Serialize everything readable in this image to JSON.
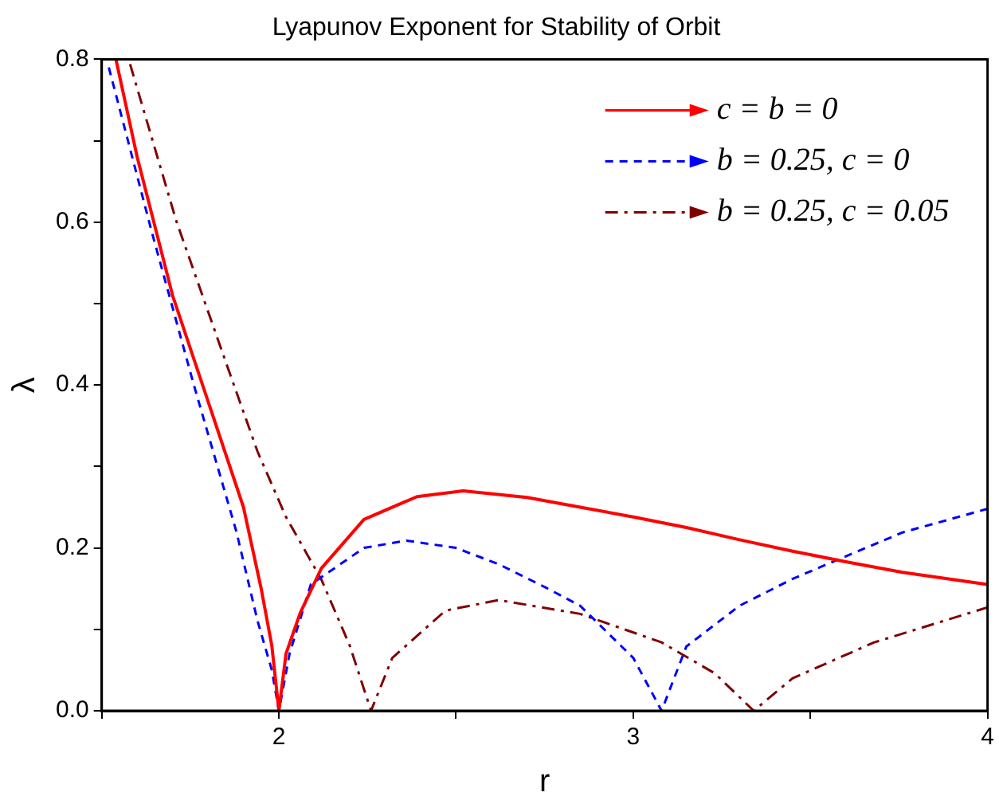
{
  "chart_data": {
    "type": "line",
    "title": "Lyapunov Exponent for Stability of Orbit",
    "xlabel": "r",
    "ylabel": "λ",
    "xlim": [
      1.5,
      4
    ],
    "xticks": [
      {
        "value": 1.5,
        "label": null
      },
      2,
      {
        "value": 2.5,
        "label": null
      },
      3,
      {
        "value": 3.5,
        "label": null
      },
      4
    ],
    "ylim": [
      0,
      0.8
    ],
    "yticks": [
      "0.0",
      {
        "value": 0.1,
        "label": null
      },
      0.2,
      {
        "value": 0.3,
        "label": null
      },
      0.4,
      {
        "value": 0.5,
        "label": null
      },
      0.6,
      {
        "value": 0.7,
        "label": null
      },
      0.8
    ],
    "grid": false,
    "legend": "top right",
    "marker": "none",
    "series": [
      {
        "name": "c = b = 0",
        "color": "#ff0000",
        "line_style": "solid",
        "x": [
          1.54,
          1.6,
          1.7,
          1.8,
          1.9,
          1.95,
          1.98,
          2.0,
          2.02,
          2.06,
          2.12,
          2.24,
          2.39,
          2.52,
          2.7,
          2.85,
          3.0,
          3.15,
          3.3,
          3.45,
          3.6,
          3.76,
          4.0
        ],
        "values": [
          0.8,
          0.68,
          0.51,
          0.38,
          0.25,
          0.15,
          0.08,
          0,
          0.07,
          0.12,
          0.175,
          0.235,
          0.263,
          0.27,
          0.262,
          0.25,
          0.238,
          0.225,
          0.21,
          0.196,
          0.183,
          0.17,
          0.155
        ]
      },
      {
        "name": "b = 0.25, c = 0",
        "color": "#0000ff",
        "line_style": "dashed",
        "x": [
          1.52,
          1.64,
          1.76,
          1.88,
          1.94,
          1.98,
          2.0,
          2.03,
          2.09,
          2.24,
          2.36,
          2.5,
          2.62,
          2.75,
          2.85,
          3.0,
          3.08,
          3.15,
          3.3,
          3.45,
          3.58,
          3.76,
          4.0
        ],
        "values": [
          0.79,
          0.59,
          0.4,
          0.22,
          0.11,
          0.05,
          0,
          0.07,
          0.155,
          0.2,
          0.209,
          0.2,
          0.18,
          0.152,
          0.129,
          0.065,
          0,
          0.079,
          0.129,
          0.162,
          0.186,
          0.219,
          0.248
        ]
      },
      {
        "name": "b = 0.25, c = 0.05",
        "color": "#800000",
        "line_style": "dashdot",
        "x": [
          1.58,
          1.71,
          1.86,
          1.94,
          2.02,
          2.12,
          2.2,
          2.26,
          2.32,
          2.47,
          2.62,
          2.85,
          3.08,
          3.23,
          3.34,
          3.45,
          3.68,
          4.0
        ],
        "values": [
          0.794,
          0.602,
          0.416,
          0.318,
          0.238,
          0.161,
          0.08,
          0,
          0.065,
          0.123,
          0.136,
          0.119,
          0.084,
          0.046,
          0,
          0.04,
          0.084,
          0.127
        ]
      }
    ]
  }
}
